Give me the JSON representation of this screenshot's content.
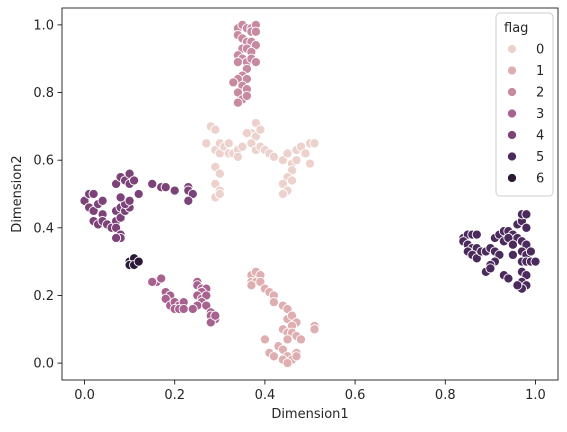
{
  "chart_data": {
    "type": "scatter",
    "title": "",
    "xlabel": "Dimension1",
    "ylabel": "Dimension2",
    "xlim": [
      -0.05,
      1.05
    ],
    "ylim": [
      -0.05,
      1.05
    ],
    "xticks": [
      0.0,
      0.2,
      0.4,
      0.6,
      0.8,
      1.0
    ],
    "yticks": [
      0.0,
      0.2,
      0.4,
      0.6,
      0.8,
      1.0
    ],
    "grid": false,
    "legend": {
      "title": "flag",
      "placement": "top-right"
    },
    "series": [
      {
        "name": "0",
        "color": "#ecd1cc",
        "points": [
          [
            0.27,
            0.65
          ],
          [
            0.28,
            0.7
          ],
          [
            0.29,
            0.69
          ],
          [
            0.29,
            0.63
          ],
          [
            0.3,
            0.62
          ],
          [
            0.3,
            0.65
          ],
          [
            0.31,
            0.64
          ],
          [
            0.32,
            0.62
          ],
          [
            0.32,
            0.65
          ],
          [
            0.33,
            0.62
          ],
          [
            0.34,
            0.63
          ],
          [
            0.34,
            0.61
          ],
          [
            0.35,
            0.64
          ],
          [
            0.29,
            0.58
          ],
          [
            0.3,
            0.56
          ],
          [
            0.29,
            0.53
          ],
          [
            0.3,
            0.51
          ],
          [
            0.29,
            0.49
          ],
          [
            0.3,
            0.5
          ],
          [
            0.37,
            0.68
          ],
          [
            0.38,
            0.71
          ],
          [
            0.38,
            0.67
          ],
          [
            0.39,
            0.69
          ],
          [
            0.36,
            0.68
          ],
          [
            0.37,
            0.65
          ],
          [
            0.38,
            0.63
          ],
          [
            0.39,
            0.64
          ],
          [
            0.4,
            0.63
          ],
          [
            0.41,
            0.62
          ],
          [
            0.42,
            0.61
          ],
          [
            0.44,
            0.6
          ],
          [
            0.45,
            0.62
          ],
          [
            0.46,
            0.59
          ],
          [
            0.47,
            0.63
          ],
          [
            0.48,
            0.64
          ],
          [
            0.47,
            0.6
          ],
          [
            0.49,
            0.62
          ],
          [
            0.5,
            0.65
          ],
          [
            0.51,
            0.65
          ],
          [
            0.5,
            0.59
          ],
          [
            0.46,
            0.57
          ],
          [
            0.45,
            0.55
          ],
          [
            0.46,
            0.54
          ],
          [
            0.44,
            0.53
          ],
          [
            0.45,
            0.51
          ],
          [
            0.44,
            0.5
          ]
        ]
      },
      {
        "name": "1",
        "color": "#dfaeb1",
        "points": [
          [
            0.37,
            0.26
          ],
          [
            0.38,
            0.27
          ],
          [
            0.39,
            0.26
          ],
          [
            0.37,
            0.24
          ],
          [
            0.38,
            0.24
          ],
          [
            0.37,
            0.23
          ],
          [
            0.39,
            0.24
          ],
          [
            0.4,
            0.22
          ],
          [
            0.41,
            0.21
          ],
          [
            0.42,
            0.2
          ],
          [
            0.42,
            0.18
          ],
          [
            0.44,
            0.17
          ],
          [
            0.45,
            0.16
          ],
          [
            0.45,
            0.13
          ],
          [
            0.46,
            0.14
          ],
          [
            0.47,
            0.12
          ],
          [
            0.46,
            0.11
          ],
          [
            0.44,
            0.1
          ],
          [
            0.45,
            0.09
          ],
          [
            0.46,
            0.09
          ],
          [
            0.47,
            0.08
          ],
          [
            0.48,
            0.07
          ],
          [
            0.45,
            0.07
          ],
          [
            0.43,
            0.05
          ],
          [
            0.44,
            0.04
          ],
          [
            0.45,
            0.02
          ],
          [
            0.46,
            0.01
          ],
          [
            0.47,
            0.03
          ],
          [
            0.44,
            0.01
          ],
          [
            0.45,
            0.0
          ],
          [
            0.41,
            0.03
          ],
          [
            0.42,
            0.02
          ],
          [
            0.4,
            0.07
          ],
          [
            0.47,
            0.02
          ],
          [
            0.51,
            0.11
          ],
          [
            0.51,
            0.1
          ]
        ]
      },
      {
        "name": "2",
        "color": "#c88aa0",
        "points": [
          [
            0.34,
            0.99
          ],
          [
            0.35,
            1.0
          ],
          [
            0.36,
            0.99
          ],
          [
            0.37,
            0.99
          ],
          [
            0.38,
            1.0
          ],
          [
            0.34,
            0.97
          ],
          [
            0.35,
            0.96
          ],
          [
            0.37,
            0.98
          ],
          [
            0.38,
            0.98
          ],
          [
            0.36,
            0.95
          ],
          [
            0.37,
            0.95
          ],
          [
            0.38,
            0.94
          ],
          [
            0.35,
            0.93
          ],
          [
            0.36,
            0.93
          ],
          [
            0.37,
            0.92
          ],
          [
            0.34,
            0.91
          ],
          [
            0.35,
            0.9
          ],
          [
            0.36,
            0.89
          ],
          [
            0.37,
            0.9
          ],
          [
            0.38,
            0.89
          ],
          [
            0.34,
            0.89
          ],
          [
            0.36,
            0.87
          ],
          [
            0.35,
            0.85
          ],
          [
            0.36,
            0.84
          ],
          [
            0.34,
            0.84
          ],
          [
            0.33,
            0.83
          ],
          [
            0.35,
            0.82
          ],
          [
            0.36,
            0.81
          ],
          [
            0.34,
            0.8
          ],
          [
            0.35,
            0.78
          ],
          [
            0.36,
            0.79
          ],
          [
            0.34,
            0.77
          ]
        ]
      },
      {
        "name": "3",
        "color": "#a8628f",
        "points": [
          [
            0.16,
            0.24
          ],
          [
            0.17,
            0.25
          ],
          [
            0.15,
            0.24
          ],
          [
            0.18,
            0.21
          ],
          [
            0.19,
            0.2
          ],
          [
            0.18,
            0.19
          ],
          [
            0.19,
            0.17
          ],
          [
            0.2,
            0.18
          ],
          [
            0.21,
            0.17
          ],
          [
            0.22,
            0.18
          ],
          [
            0.2,
            0.16
          ],
          [
            0.21,
            0.16
          ],
          [
            0.22,
            0.16
          ],
          [
            0.25,
            0.24
          ],
          [
            0.25,
            0.23
          ],
          [
            0.26,
            0.22
          ],
          [
            0.27,
            0.22
          ],
          [
            0.26,
            0.21
          ],
          [
            0.25,
            0.2
          ],
          [
            0.26,
            0.19
          ],
          [
            0.27,
            0.2
          ],
          [
            0.26,
            0.18
          ],
          [
            0.25,
            0.17
          ],
          [
            0.27,
            0.17
          ],
          [
            0.28,
            0.15
          ],
          [
            0.28,
            0.14
          ],
          [
            0.29,
            0.13
          ],
          [
            0.24,
            0.16
          ],
          [
            0.28,
            0.12
          ],
          [
            0.29,
            0.14
          ]
        ]
      },
      {
        "name": "4",
        "color": "#7c4379",
        "points": [
          [
            0.0,
            0.48
          ],
          [
            0.01,
            0.5
          ],
          [
            0.02,
            0.5
          ],
          [
            0.01,
            0.46
          ],
          [
            0.02,
            0.45
          ],
          [
            0.03,
            0.47
          ],
          [
            0.04,
            0.48
          ],
          [
            0.04,
            0.44
          ],
          [
            0.02,
            0.42
          ],
          [
            0.03,
            0.41
          ],
          [
            0.04,
            0.42
          ],
          [
            0.05,
            0.41
          ],
          [
            0.06,
            0.4
          ],
          [
            0.07,
            0.45
          ],
          [
            0.07,
            0.42
          ],
          [
            0.08,
            0.43
          ],
          [
            0.07,
            0.4
          ],
          [
            0.08,
            0.38
          ],
          [
            0.08,
            0.37
          ],
          [
            0.07,
            0.37
          ],
          [
            0.08,
            0.46
          ],
          [
            0.09,
            0.45
          ],
          [
            0.1,
            0.46
          ],
          [
            0.09,
            0.47
          ],
          [
            0.1,
            0.48
          ],
          [
            0.08,
            0.49
          ],
          [
            0.07,
            0.53
          ],
          [
            0.08,
            0.55
          ],
          [
            0.09,
            0.54
          ],
          [
            0.1,
            0.56
          ],
          [
            0.1,
            0.53
          ],
          [
            0.11,
            0.54
          ],
          [
            0.12,
            0.5
          ],
          [
            0.15,
            0.53
          ],
          [
            0.17,
            0.52
          ],
          [
            0.18,
            0.52
          ],
          [
            0.2,
            0.51
          ],
          [
            0.23,
            0.52
          ],
          [
            0.23,
            0.51
          ],
          [
            0.24,
            0.5
          ],
          [
            0.23,
            0.48
          ]
        ]
      },
      {
        "name": "5",
        "color": "#4b2a5c",
        "points": [
          [
            0.84,
            0.37
          ],
          [
            0.85,
            0.38
          ],
          [
            0.86,
            0.38
          ],
          [
            0.87,
            0.38
          ],
          [
            0.84,
            0.36
          ],
          [
            0.85,
            0.35
          ],
          [
            0.86,
            0.34
          ],
          [
            0.87,
            0.34
          ],
          [
            0.85,
            0.33
          ],
          [
            0.86,
            0.32
          ],
          [
            0.87,
            0.31
          ],
          [
            0.88,
            0.33
          ],
          [
            0.89,
            0.33
          ],
          [
            0.9,
            0.34
          ],
          [
            0.91,
            0.37
          ],
          [
            0.92,
            0.38
          ],
          [
            0.93,
            0.39
          ],
          [
            0.94,
            0.39
          ],
          [
            0.95,
            0.38
          ],
          [
            0.96,
            0.37
          ],
          [
            0.93,
            0.36
          ],
          [
            0.94,
            0.37
          ],
          [
            0.95,
            0.35
          ],
          [
            0.91,
            0.33
          ],
          [
            0.92,
            0.32
          ],
          [
            0.91,
            0.3
          ],
          [
            0.9,
            0.29
          ],
          [
            0.89,
            0.27
          ],
          [
            0.9,
            0.28
          ],
          [
            0.93,
            0.26
          ],
          [
            0.94,
            0.25
          ],
          [
            0.96,
            0.41
          ],
          [
            0.97,
            0.42
          ],
          [
            0.97,
            0.44
          ],
          [
            0.98,
            0.44
          ],
          [
            0.98,
            0.4
          ],
          [
            0.97,
            0.36
          ],
          [
            0.98,
            0.35
          ],
          [
            0.97,
            0.33
          ],
          [
            0.98,
            0.32
          ],
          [
            0.99,
            0.33
          ],
          [
            0.97,
            0.3
          ],
          [
            0.98,
            0.3
          ],
          [
            0.99,
            0.3
          ],
          [
            1.0,
            0.3
          ],
          [
            0.97,
            0.27
          ],
          [
            0.98,
            0.26
          ],
          [
            0.97,
            0.24
          ],
          [
            0.98,
            0.23
          ],
          [
            0.97,
            0.22
          ],
          [
            0.96,
            0.23
          ],
          [
            0.95,
            0.32
          ]
        ]
      },
      {
        "name": "6",
        "color": "#2a1a37",
        "points": [
          [
            0.1,
            0.3
          ],
          [
            0.11,
            0.31
          ],
          [
            0.1,
            0.29
          ],
          [
            0.11,
            0.29
          ],
          [
            0.12,
            0.3
          ]
        ]
      }
    ]
  }
}
